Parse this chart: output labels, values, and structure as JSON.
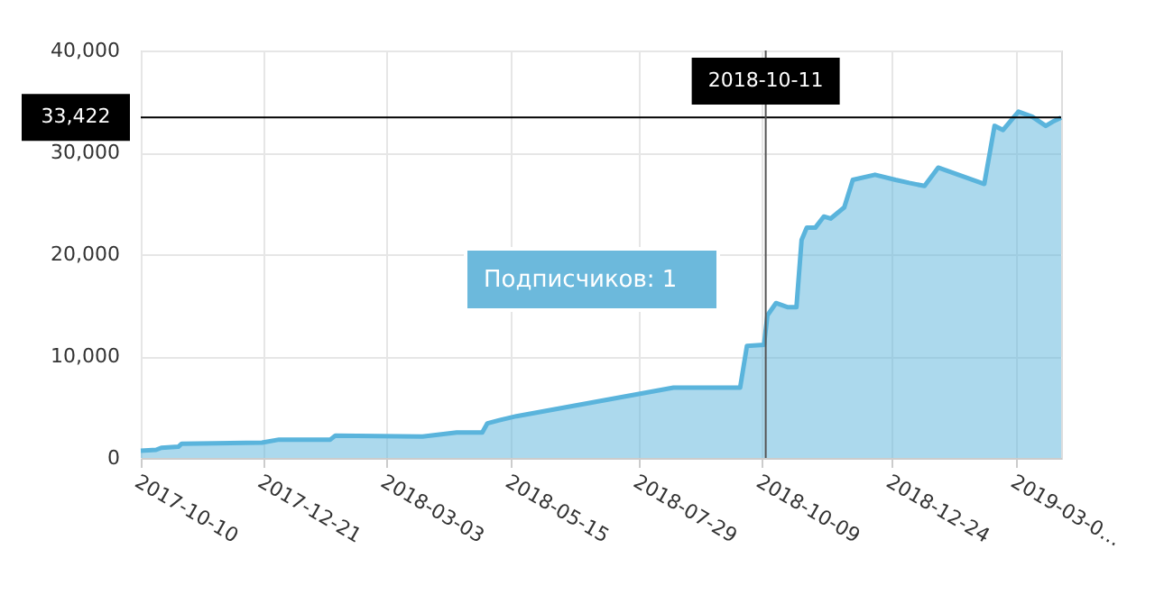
{
  "chart_data": {
    "type": "area",
    "x": [
      "2017-10-10",
      "2017-10-19",
      "2017-10-22",
      "2017-11-01",
      "2017-11-03",
      "2017-12-20",
      "2017-12-30",
      "2018-01-29",
      "2018-02-01",
      "2018-03-24",
      "2018-04-13",
      "2018-04-28",
      "2018-05-01",
      "2018-05-08",
      "2018-05-18",
      "2018-08-18",
      "2018-09-26",
      "2018-09-30",
      "2018-10-10",
      "2018-10-12",
      "2018-10-17",
      "2018-10-24",
      "2018-10-29",
      "2018-11-01",
      "2018-11-04",
      "2018-11-09",
      "2018-11-14",
      "2018-11-18",
      "2018-11-26",
      "2018-12-01",
      "2018-12-14",
      "2018-12-26",
      "2019-01-03",
      "2019-01-12",
      "2019-01-20",
      "2019-02-16",
      "2019-02-22",
      "2019-02-27",
      "2019-03-08",
      "2019-03-16",
      "2019-03-24",
      "2019-03-28",
      "2019-04-02"
    ],
    "series": [
      {
        "color": "#5ab4dc",
        "values": [
          700,
          800,
          1000,
          1100,
          1400,
          1500,
          1800,
          1800,
          2200,
          2100,
          2500,
          2500,
          3400,
          3700,
          4100,
          6900,
          6900,
          11000,
          11100,
          14000,
          15200,
          14800,
          14800,
          21400,
          22600,
          22600,
          23700,
          23500,
          24600,
          27300,
          27800,
          27300,
          27000,
          26700,
          28500,
          26900,
          32600,
          32200,
          34000,
          33500,
          32600,
          33000,
          33400
        ]
      }
    ],
    "xlim": [
      "2017-10-10",
      "2019-04-02"
    ],
    "xticks": [
      {
        "value": "2017-10-10",
        "label": "2017-10-10"
      },
      {
        "value": "2017-12-21",
        "label": "2017-12-21"
      },
      {
        "value": "2018-03-03",
        "label": "2018-03-03"
      },
      {
        "value": "2018-05-15",
        "label": "2018-05-15"
      },
      {
        "value": "2018-07-29",
        "label": "2018-07-29"
      },
      {
        "value": "2018-10-09",
        "label": "2018-10-09"
      },
      {
        "value": "2018-12-24",
        "label": "2018-12-24"
      },
      {
        "value": "2019-03-07",
        "label": "2019-03-0…"
      }
    ],
    "ylim": [
      0,
      40000
    ],
    "yticks": [
      {
        "value": 0,
        "label": "0"
      },
      {
        "value": 10000,
        "label": "10,000"
      },
      {
        "value": 20000,
        "label": "20,000"
      },
      {
        "value": 30000,
        "label": "30,000"
      },
      {
        "value": 40000,
        "label": "40,000"
      }
    ],
    "grid": true,
    "ref_lines": [
      {
        "axis": "y",
        "value": 33422,
        "label": "33,422",
        "color": "#000000"
      },
      {
        "axis": "x",
        "value": "2018-10-11",
        "label": "2018-10-11",
        "color": "#555555"
      }
    ],
    "annotations": [
      "Подписчиков: 1"
    ]
  }
}
